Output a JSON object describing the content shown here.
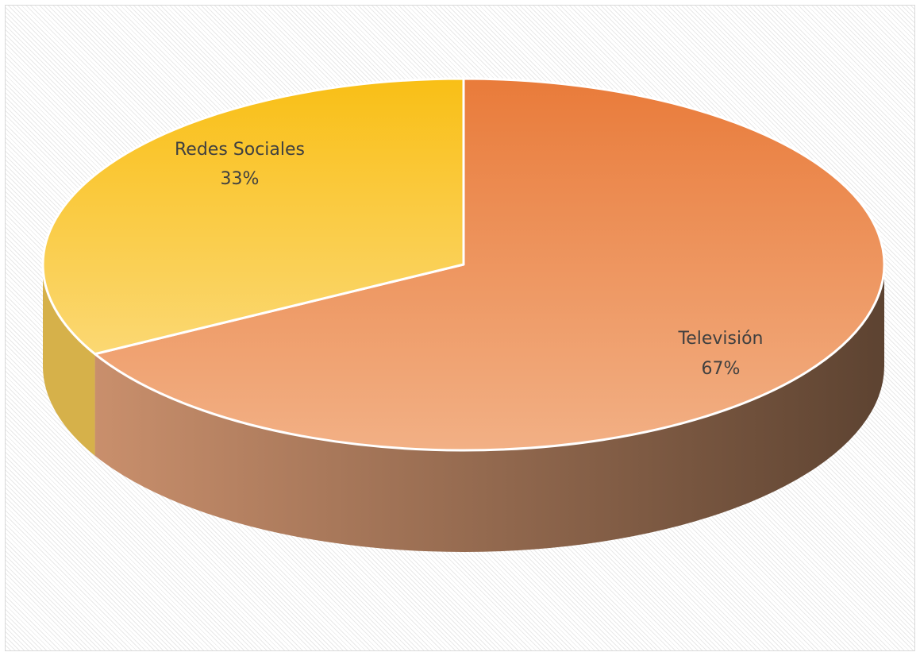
{
  "chart_data": {
    "type": "pie",
    "style": "3d",
    "slices": [
      {
        "label": "Televisión",
        "value": 67,
        "percent_label": "67%",
        "color": "#ec9a6a"
      },
      {
        "label": "Redes Sociales",
        "value": 33,
        "percent_label": "33%",
        "color": "#f9cf4f"
      }
    ],
    "colors": {
      "television_top": "#e97b3a",
      "television_bottom": "#f2b085",
      "television_side_light": "#c98f6c",
      "television_side_dark": "#5d4331",
      "redes_top": "#f9bf16",
      "redes_bottom": "#fbd873",
      "redes_side": "#d6b14a",
      "edge": "#ffffff"
    }
  }
}
